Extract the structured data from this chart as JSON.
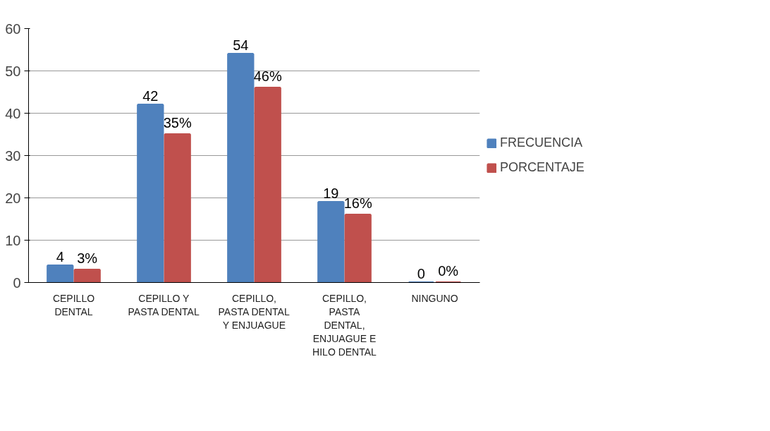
{
  "chart_data": {
    "type": "bar",
    "categories": [
      "CEPILLO DENTAL",
      "CEPILLO Y PASTA DENTAL",
      "CEPILLO, PASTA DENTAL Y ENJUAGUE",
      "CEPILLO, PASTA DENTAL, ENJUAGUE E HILO DENTAL",
      "NINGUNO"
    ],
    "series": [
      {
        "name": "FRECUENCIA",
        "color": "#4f81bd",
        "values": [
          4,
          42,
          54,
          19,
          0
        ],
        "value_labels": [
          "4",
          "42",
          "54",
          "19",
          "0"
        ]
      },
      {
        "name": "PORCENTAJE",
        "color": "#c0504d",
        "values": [
          3,
          35,
          46,
          16,
          0
        ],
        "value_labels": [
          "3%",
          "35%",
          "46%",
          "16%",
          "0%"
        ]
      }
    ],
    "ylim": [
      0,
      60
    ],
    "yticks": [
      0,
      10,
      20,
      30,
      40,
      50,
      60
    ],
    "grid": "y",
    "legend": "right"
  }
}
